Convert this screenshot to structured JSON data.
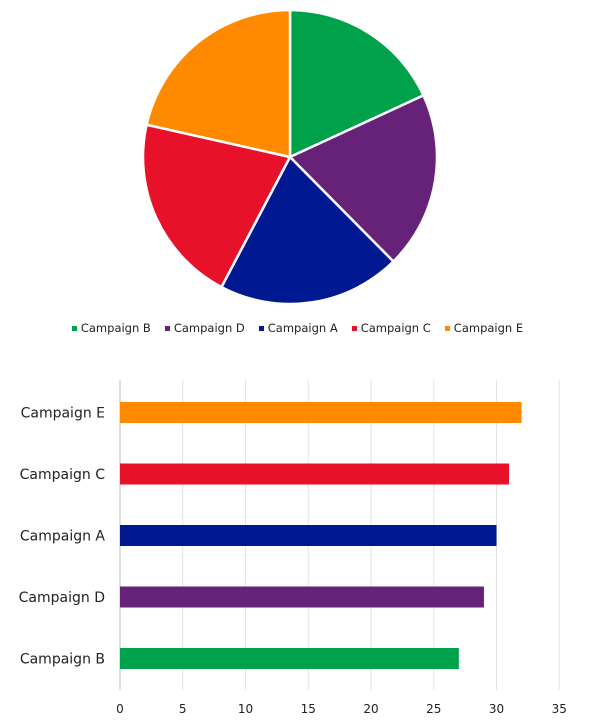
{
  "colors": {
    "Campaign A": "#001890",
    "Campaign B": "#00a14b",
    "Campaign C": "#e8112a",
    "Campaign D": "#662178",
    "Campaign E": "#ff8a00"
  },
  "chart_data": [
    {
      "type": "pie",
      "order": [
        "Campaign B",
        "Campaign D",
        "Campaign A",
        "Campaign C",
        "Campaign E"
      ],
      "values": [
        27,
        29,
        30,
        31,
        32
      ],
      "legend": [
        "Campaign B",
        "Campaign D",
        "Campaign A",
        "Campaign C",
        "Campaign E"
      ],
      "legend_position": "bottom"
    },
    {
      "type": "bar",
      "orientation": "horizontal",
      "categories": [
        "Campaign E",
        "Campaign C",
        "Campaign A",
        "Campaign D",
        "Campaign B"
      ],
      "values": [
        32,
        31,
        30,
        29,
        27
      ],
      "xlim": [
        0,
        35
      ],
      "xticks": [
        "0",
        "5",
        "10",
        "15",
        "20",
        "25",
        "30",
        "35"
      ],
      "grid": true
    }
  ]
}
